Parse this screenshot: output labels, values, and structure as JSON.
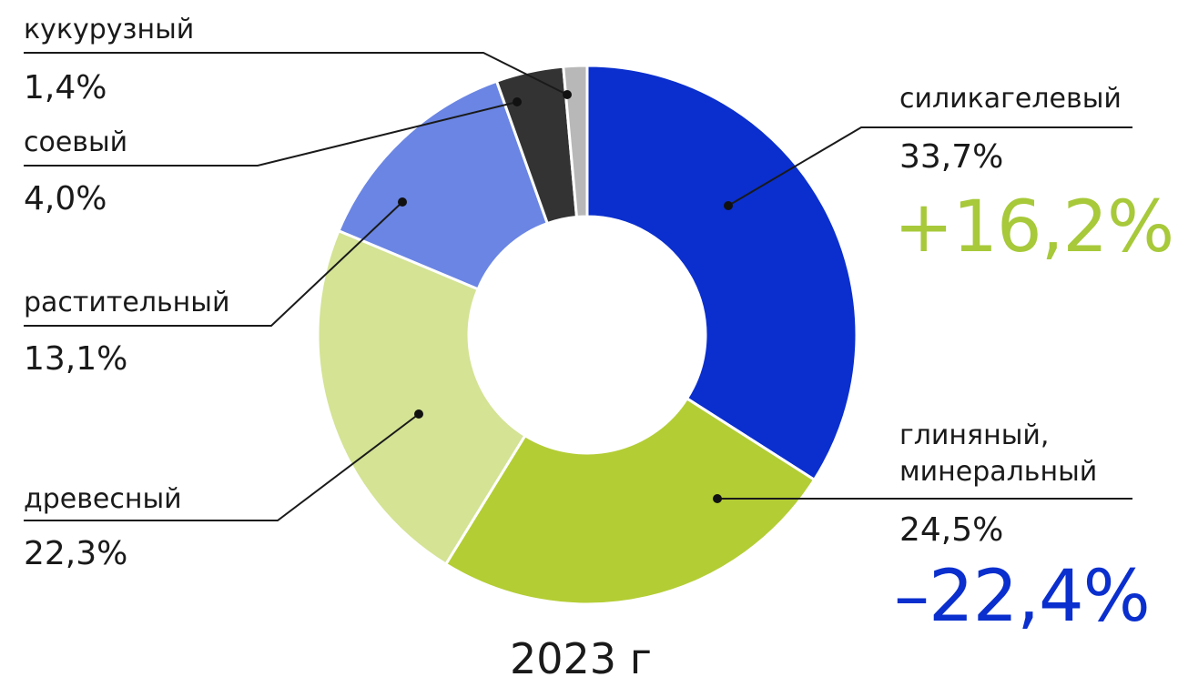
{
  "chart_data": {
    "type": "pie",
    "subtype": "donut",
    "title": "2023 г",
    "slices": [
      {
        "label": "силикагелевый",
        "value": 33.7,
        "value_label": "33,7%",
        "change": "+16,2%",
        "color": "#0a2fce"
      },
      {
        "label": "глиняный, минеральный",
        "label_lines": [
          "глиняный,",
          "минеральный"
        ],
        "value": 24.5,
        "value_label": "24,5%",
        "change": "–22,4%",
        "color": "#b3cd34"
      },
      {
        "label": "древесный",
        "value": 22.3,
        "value_label": "22,3%",
        "change": "",
        "color": "#d4e394"
      },
      {
        "label": "растительный",
        "value": 13.1,
        "value_label": "13,1%",
        "change": "",
        "color": "#6a85e3"
      },
      {
        "label": "соевый",
        "value": 4.0,
        "value_label": "4,0%",
        "change": "",
        "color": "#333333"
      },
      {
        "label": "кукурузный",
        "value": 1.4,
        "value_label": "1,4%",
        "change": "",
        "color": "#b8b8b8"
      }
    ],
    "change_colors": {
      "positive": "#a7c93a",
      "negative": "#0a2fce"
    },
    "legend": "callout-labels"
  }
}
